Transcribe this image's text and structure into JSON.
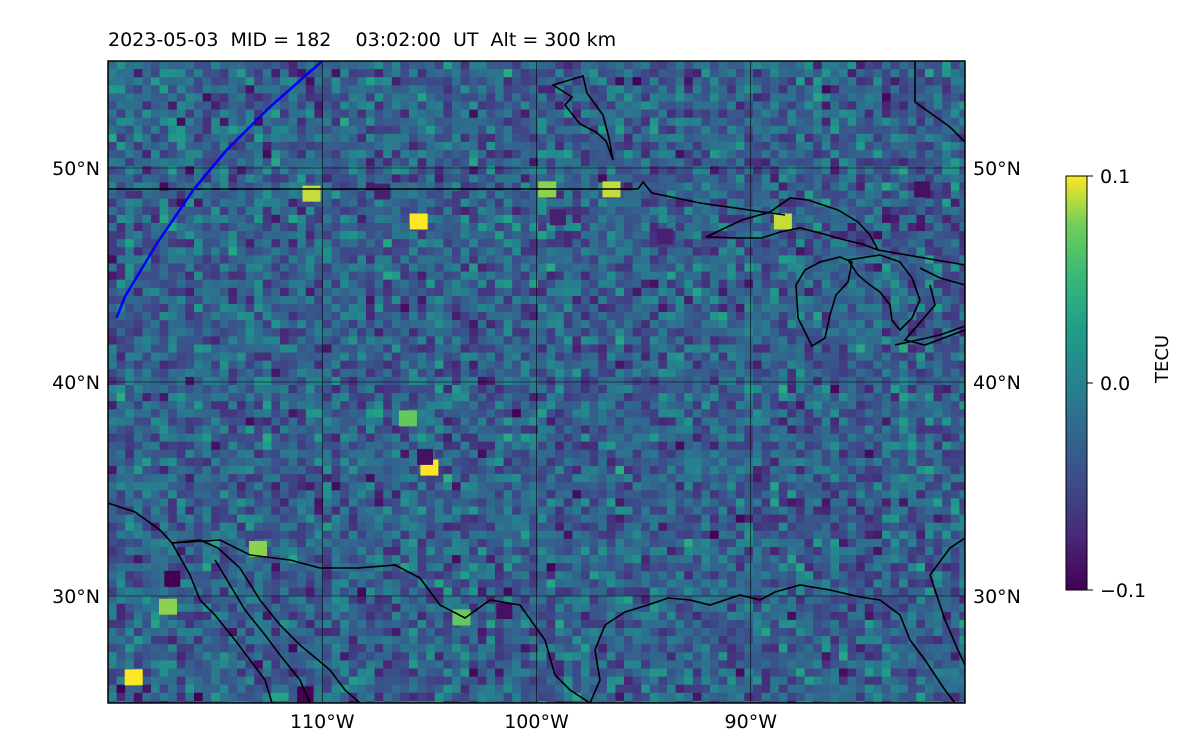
{
  "title": "2023-05-03  MID = 182    03:02:00  UT  Alt = 300 km",
  "chart_data": {
    "type": "heatmap",
    "title": "2023-05-03  MID = 182    03:02:00  UT  Alt = 300 km",
    "xlim": [
      -120,
      -80
    ],
    "ylim": [
      25,
      55
    ],
    "lon_ticks": [
      -110,
      -100,
      -90
    ],
    "lon_tick_labels": [
      "110°W",
      "100°W",
      "90°W"
    ],
    "lat_ticks": [
      30,
      40,
      50
    ],
    "lat_tick_labels": [
      "30°N",
      "40°N",
      "50°N"
    ],
    "grid": true,
    "colormap": "viridis",
    "colorbar": {
      "label": "TECU",
      "min": -0.1,
      "max": 0.1,
      "ticks": [
        0.1,
        0.0,
        -0.1
      ],
      "tick_labels": [
        "0.1",
        "0.0",
        "−0.1"
      ]
    },
    "terminator_line": {
      "color": "#0000ff",
      "points": [
        [
          -119.6,
          43.0
        ],
        [
          -119.2,
          44.0
        ],
        [
          -117.7,
          46.5
        ],
        [
          -116.0,
          49.0
        ],
        [
          -114.5,
          50.8
        ],
        [
          -112.5,
          52.8
        ],
        [
          -110.8,
          54.3
        ],
        [
          -110.0,
          55.0
        ]
      ]
    },
    "enhancements": [
      {
        "lon": -118.8,
        "lat": 26.2,
        "value": 0.1
      },
      {
        "lon": -117.2,
        "lat": 29.5,
        "value": 0.08
      },
      {
        "lon": -105.5,
        "lat": 47.5,
        "value": 0.1
      },
      {
        "lon": -105.0,
        "lat": 36.0,
        "value": 0.1
      },
      {
        "lon": -106.0,
        "lat": 38.3,
        "value": 0.07
      },
      {
        "lon": -110.5,
        "lat": 48.8,
        "value": 0.09
      },
      {
        "lon": -99.5,
        "lat": 49.0,
        "value": 0.08
      },
      {
        "lon": -96.5,
        "lat": 49.0,
        "value": 0.09
      },
      {
        "lon": -88.5,
        "lat": 47.5,
        "value": 0.09
      },
      {
        "lon": -113.0,
        "lat": 32.2,
        "value": 0.08
      },
      {
        "lon": -103.5,
        "lat": 29.0,
        "value": 0.07
      }
    ],
    "depletions": [
      {
        "lon": -117.0,
        "lat": 30.8,
        "value": -0.1
      },
      {
        "lon": -110.8,
        "lat": 25.4,
        "value": -0.1
      },
      {
        "lon": -105.2,
        "lat": 36.5,
        "value": -0.09
      },
      {
        "lon": -99.0,
        "lat": 47.7,
        "value": -0.08
      },
      {
        "lon": -101.5,
        "lat": 29.3,
        "value": -0.09
      },
      {
        "lon": -94.0,
        "lat": 46.8,
        "value": -0.08
      },
      {
        "lon": -82.0,
        "lat": 49.0,
        "value": -0.09
      },
      {
        "lon": -107.2,
        "lat": 48.9,
        "value": -0.08
      }
    ]
  }
}
